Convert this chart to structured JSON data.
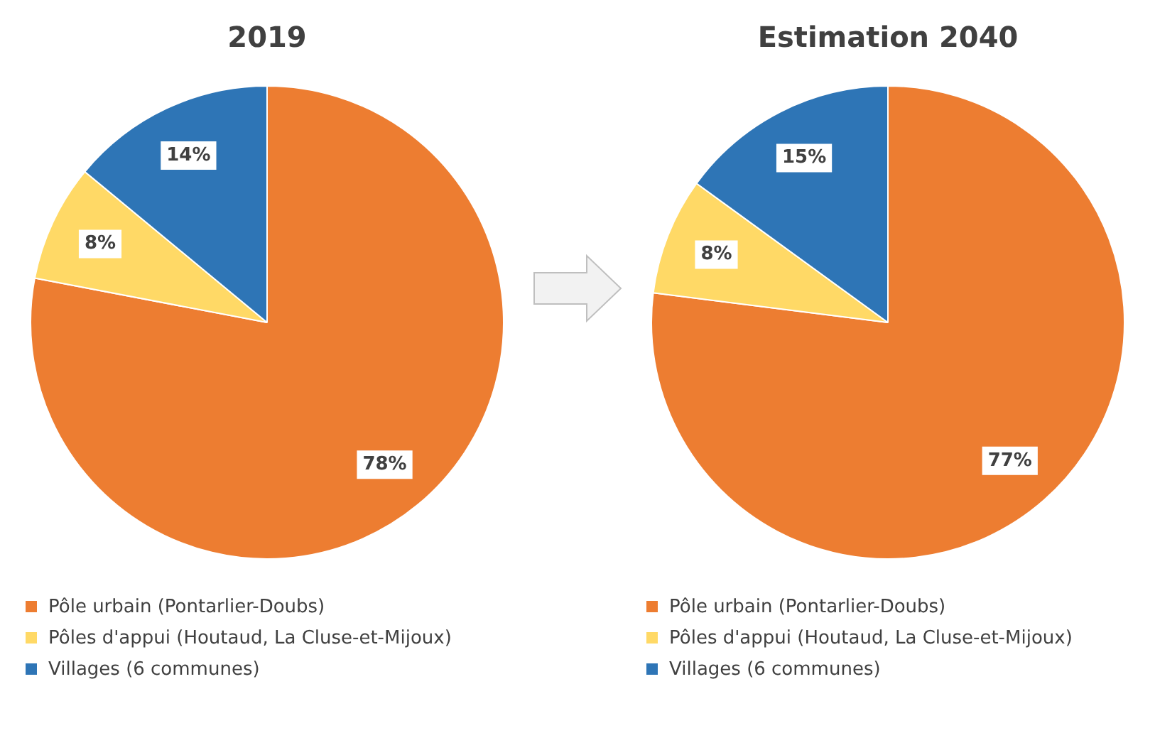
{
  "chart_data": [
    {
      "type": "pie",
      "title": "2019",
      "categories": [
        "Pôle urbain (Pontarlier-Doubs)",
        "Pôles d'appui (Houtaud, La Cluse-et-Mijoux)",
        "Villages (6 communes)"
      ],
      "values": [
        78,
        8,
        14
      ],
      "colors": [
        "#ed7d31",
        "#ffd966",
        "#2e75b6"
      ],
      "value_labels": [
        "78%",
        "8%",
        "14%"
      ],
      "legend": "bottom"
    },
    {
      "type": "pie",
      "title": "Estimation 2040",
      "categories": [
        "Pôle urbain (Pontarlier-Doubs)",
        "Pôles d'appui (Houtaud, La Cluse-et-Mijoux)",
        "Villages (6 communes)"
      ],
      "values": [
        77,
        8,
        15
      ],
      "colors": [
        "#ed7d31",
        "#ffd966",
        "#2e75b6"
      ],
      "value_labels": [
        "77%",
        "8%",
        "15%"
      ],
      "legend": "bottom"
    }
  ]
}
